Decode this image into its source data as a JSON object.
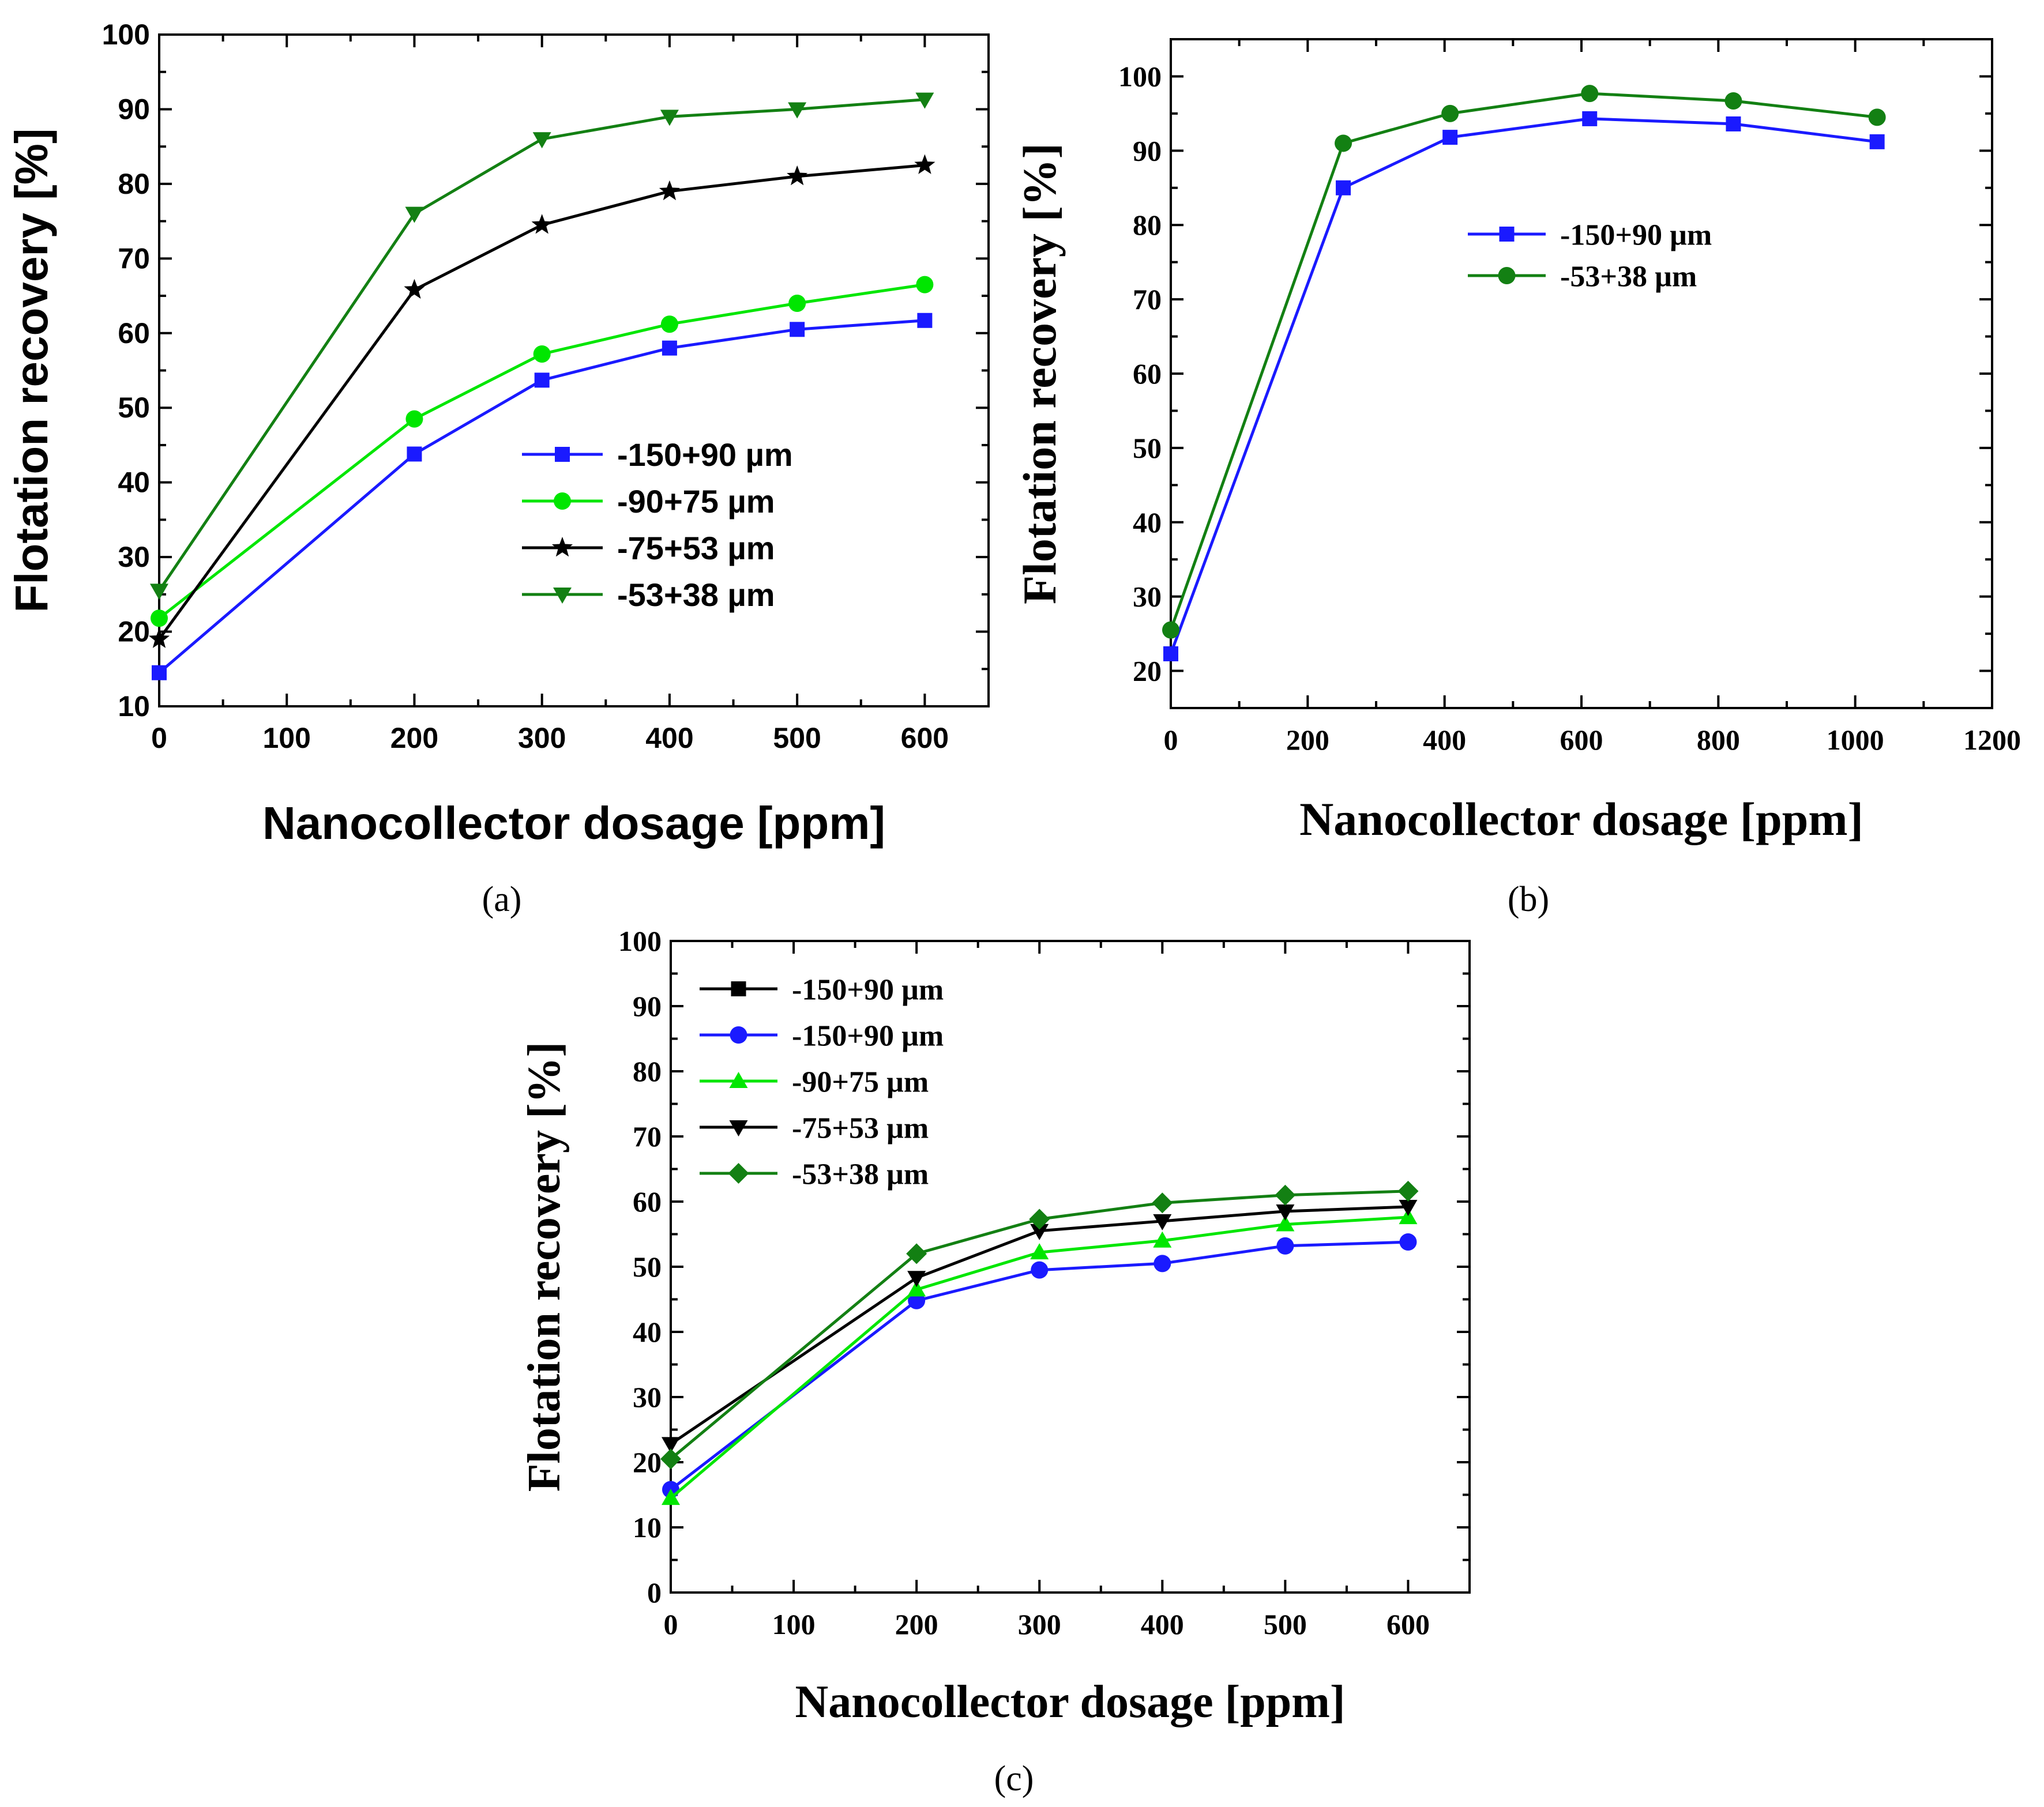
{
  "chart_data": [
    {
      "type": "line",
      "panel_label": "(a)",
      "font": "sans",
      "xlabel": "Nanocollector dosage [ppm]",
      "ylabel": "Flotation recovery [%]",
      "xlim": [
        0,
        650
      ],
      "ylim": [
        10,
        100
      ],
      "xticks": [
        0,
        100,
        200,
        300,
        400,
        500,
        600
      ],
      "xtick_labels": [
        "0",
        "100",
        "200",
        "300",
        "400",
        "500",
        "600"
      ],
      "yticks": [
        10,
        20,
        30,
        40,
        50,
        60,
        70,
        80,
        90,
        100
      ],
      "ytick_labels": [
        "10",
        "20",
        "30",
        "40",
        "50",
        "60",
        "70",
        "80",
        "90",
        "100"
      ],
      "grid": false,
      "legend_position": "middle-right",
      "series": [
        {
          "name": "-150+90 µm",
          "color": "#1a1aff",
          "marker": "square",
          "x": [
            0,
            200,
            300,
            400,
            500,
            600
          ],
          "y": [
            14.5,
            43.8,
            53.7,
            58.0,
            60.5,
            61.7
          ]
        },
        {
          "name": "-90+75 µm",
          "color": "#00e600",
          "marker": "circle",
          "x": [
            0,
            200,
            300,
            400,
            500,
            600
          ],
          "y": [
            21.8,
            48.5,
            57.2,
            61.2,
            64.0,
            66.5
          ]
        },
        {
          "name": "-75+53 µm",
          "color": "#000000",
          "marker": "star",
          "x": [
            0,
            200,
            300,
            400,
            500,
            600
          ],
          "y": [
            19.0,
            65.8,
            74.5,
            79.0,
            81.0,
            82.5
          ]
        },
        {
          "name": "-53+38 µm",
          "color": "#138013",
          "marker": "triangle-down",
          "x": [
            0,
            200,
            300,
            400,
            500,
            600
          ],
          "y": [
            25.5,
            76.0,
            86.0,
            89.0,
            90.0,
            91.3
          ]
        }
      ]
    },
    {
      "type": "line",
      "panel_label": "(b)",
      "font": "serif",
      "xlabel": "Nanocollector dosage [ppm]",
      "ylabel": "Flotation recovery [%]",
      "xlim": [
        0,
        1200
      ],
      "ylim": [
        15,
        105
      ],
      "xticks": [
        0,
        200,
        400,
        600,
        800,
        1000,
        1200
      ],
      "xtick_labels": [
        "0",
        "200",
        "400",
        "600",
        "800",
        "1000",
        "1200"
      ],
      "yticks": [
        20,
        30,
        40,
        50,
        60,
        70,
        80,
        90,
        100
      ],
      "ytick_labels": [
        "20",
        "30",
        "40",
        "50",
        "60",
        "70",
        "80",
        "90",
        "100"
      ],
      "grid": false,
      "legend_position": "upper-middle",
      "series": [
        {
          "name": "-150+90 µm",
          "color": "#1a1aff",
          "marker": "square",
          "x": [
            0,
            252,
            408,
            612,
            822,
            1032
          ],
          "y": [
            22.3,
            85.0,
            91.8,
            94.3,
            93.6,
            91.2
          ]
        },
        {
          "name": "-53+38 µm",
          "color": "#138013",
          "marker": "circle",
          "x": [
            0,
            252,
            408,
            612,
            822,
            1032
          ],
          "y": [
            25.5,
            91.0,
            95.0,
            97.7,
            96.7,
            94.5
          ]
        }
      ]
    },
    {
      "type": "line",
      "panel_label": "(c)",
      "font": "serif",
      "xlabel": "Nanocollector dosage [ppm]",
      "ylabel": "Flotation recovery [%]",
      "xlim": [
        0,
        650
      ],
      "ylim": [
        0,
        100
      ],
      "xticks": [
        0,
        100,
        200,
        300,
        400,
        500,
        600
      ],
      "xtick_labels": [
        "0",
        "100",
        "200",
        "300",
        "400",
        "500",
        "600"
      ],
      "yticks": [
        0,
        10,
        20,
        30,
        40,
        50,
        60,
        70,
        80,
        90,
        100
      ],
      "ytick_labels": [
        "0",
        "10",
        "20",
        "30",
        "40",
        "50",
        "60",
        "70",
        "80",
        "90",
        "100"
      ],
      "grid": false,
      "legend_position": "top-left",
      "series": [
        {
          "name": "-150+90 µm",
          "color": "#000000",
          "marker": "square",
          "x": [],
          "y": []
        },
        {
          "name": "-150+90 µm",
          "color": "#1a1aff",
          "marker": "circle",
          "x": [
            0,
            200,
            300,
            400,
            500,
            600
          ],
          "y": [
            15.8,
            44.8,
            49.5,
            50.5,
            53.2,
            53.8
          ]
        },
        {
          "name": "-90+75 µm",
          "color": "#00e600",
          "marker": "triangle-up",
          "x": [
            0,
            200,
            300,
            400,
            500,
            600
          ],
          "y": [
            14.5,
            46.5,
            52.2,
            54.0,
            56.5,
            57.6
          ]
        },
        {
          "name": "-75+53 µm",
          "color": "#000000",
          "marker": "triangle-down",
          "x": [
            0,
            200,
            300,
            400,
            500,
            600
          ],
          "y": [
            22.8,
            48.3,
            55.5,
            57.0,
            58.5,
            59.2
          ]
        },
        {
          "name": "-53+38 µm",
          "color": "#138013",
          "marker": "diamond",
          "x": [
            0,
            200,
            300,
            400,
            500,
            600
          ],
          "y": [
            20.5,
            52.0,
            57.3,
            59.8,
            61.0,
            61.6
          ]
        }
      ]
    }
  ]
}
